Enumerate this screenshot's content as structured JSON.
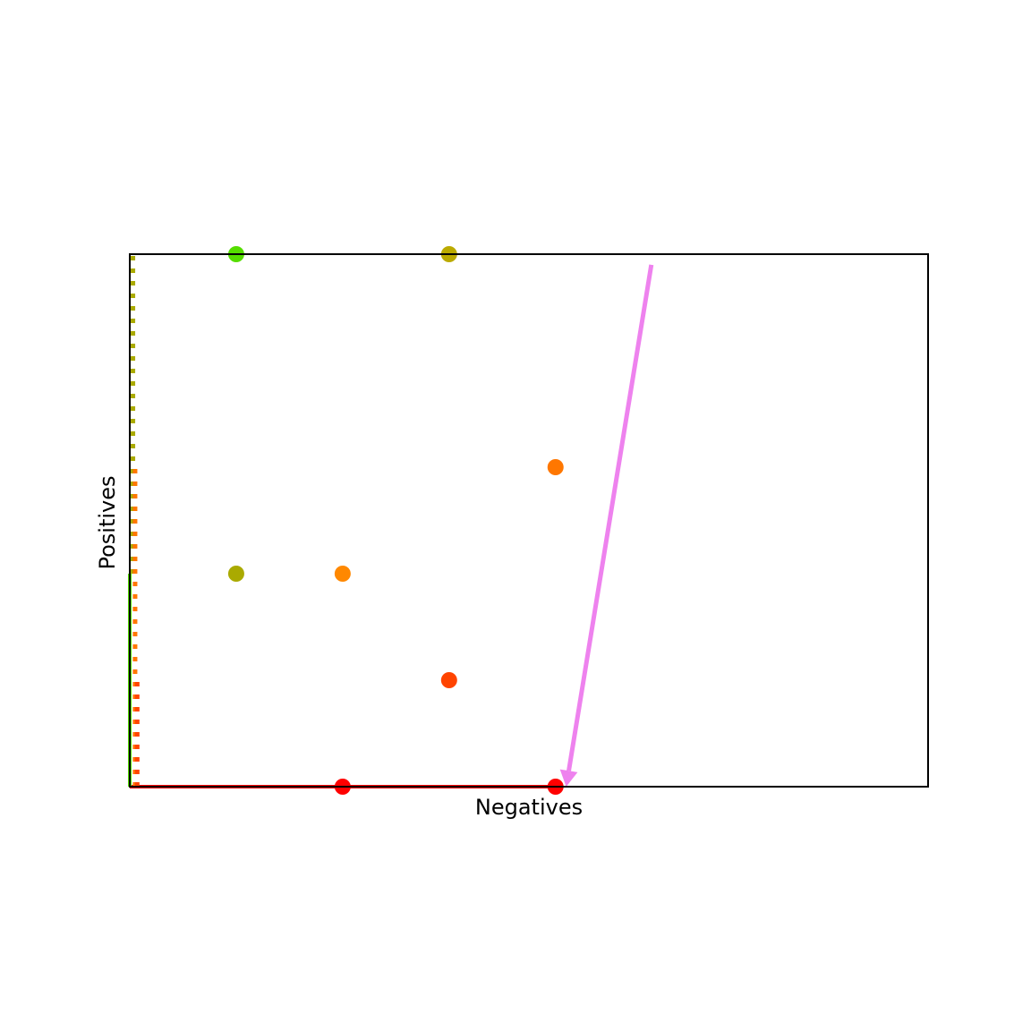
{
  "chart_data": {
    "type": "scatter",
    "title": "",
    "xlabel": "Negatives",
    "ylabel": "Positives",
    "xlim": [
      0,
      7.5
    ],
    "ylim": [
      0,
      5
    ],
    "show_ticks": false,
    "grid": false,
    "points": [
      {
        "x": 1,
        "y": 5,
        "color": "#55dd00"
      },
      {
        "x": 3,
        "y": 5,
        "color": "#bbaa00"
      },
      {
        "x": 4,
        "y": 3,
        "color": "#ff7700"
      },
      {
        "x": 1,
        "y": 2,
        "color": "#aaaa00"
      },
      {
        "x": 2,
        "y": 2,
        "color": "#ff8800"
      },
      {
        "x": 3,
        "y": 1,
        "color": "#ff4400"
      },
      {
        "x": 2,
        "y": 0,
        "color": "#ff0000"
      },
      {
        "x": 4,
        "y": 0,
        "color": "#ff0000"
      }
    ],
    "lines": [
      {
        "x": [
          0,
          4
        ],
        "y": [
          0,
          0
        ],
        "color": "#ff0000",
        "style": "solid"
      },
      {
        "x": [
          0,
          0
        ],
        "y": [
          0,
          2
        ],
        "color": "#55dd00",
        "style": "solid"
      },
      {
        "x": [
          0.03,
          0.03
        ],
        "y": [
          2,
          5
        ],
        "color": "#aaaa00",
        "style": "dotted"
      },
      {
        "x": [
          0.05,
          0.05
        ],
        "y": [
          0,
          3
        ],
        "color": "#ff7700",
        "style": "dotted"
      },
      {
        "x": [
          0.07,
          0.07
        ],
        "y": [
          0,
          1
        ],
        "color": "#ff4400",
        "style": "dotted"
      }
    ],
    "annotations": [
      {
        "type": "arrow",
        "from": [
          4.9,
          4.9
        ],
        "to": [
          4.1,
          0
        ],
        "color": "#ee82ee"
      }
    ]
  }
}
